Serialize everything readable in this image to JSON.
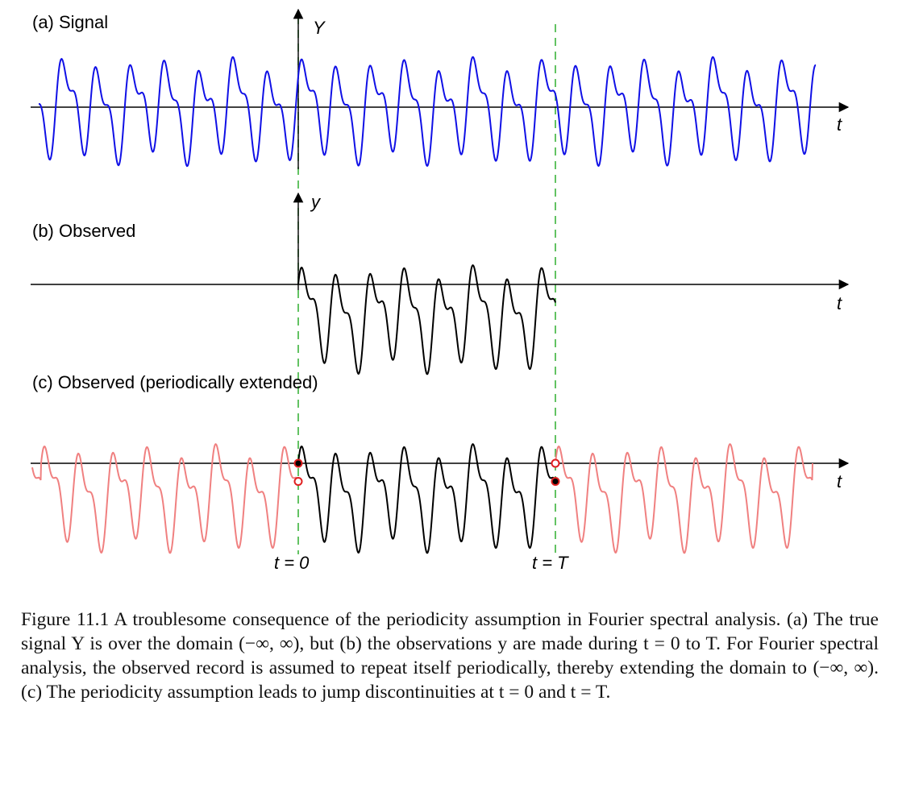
{
  "figure": {
    "panels": [
      {
        "id": "a",
        "title": "(a)  Signal",
        "axis_label": "Y",
        "time_label": "t"
      },
      {
        "id": "b",
        "title": "(b)  Observed",
        "axis_label": "y",
        "time_label": "t"
      },
      {
        "id": "c",
        "title": "(c)  Observed (periodically extended)",
        "axis_label": "",
        "time_label": "t"
      }
    ],
    "markers": {
      "t0": "t = 0",
      "tT": "t = T"
    },
    "colors": {
      "signal": "#1010e6",
      "observed": "#000000",
      "extended": "#f08080",
      "marker_line": "#3cb43c",
      "jump_point": "#e02020"
    }
  },
  "chart_data": {
    "type": "line",
    "title": "",
    "xlabel": "t",
    "ylabel": "Y",
    "grid": false,
    "legend": "none",
    "description_points": [
      "t = 0",
      "t = T"
    ],
    "series": [
      {
        "panel": "a",
        "values_note": "continuous signal over (-inf, inf)"
      },
      {
        "panel": "b",
        "values_note": "observations from t = 0 to T"
      },
      {
        "panel": "c",
        "values_note": "observed record repeated periodically"
      }
    ]
  },
  "caption": {
    "label": "Figure 11.1",
    "text": "A troublesome consequence of the periodicity assumption in Fourier spectral analysis. (a) The true signal Y is over the domain (−∞, ∞), but (b) the observations y are made during t = 0 to T. For Fourier spectral analysis, the observed record is assumed to repeat itself periodically, thereby extending the domain to (−∞, ∞). (c) The periodicity assumption leads to jump discontinuities at t = 0 and t = T."
  }
}
